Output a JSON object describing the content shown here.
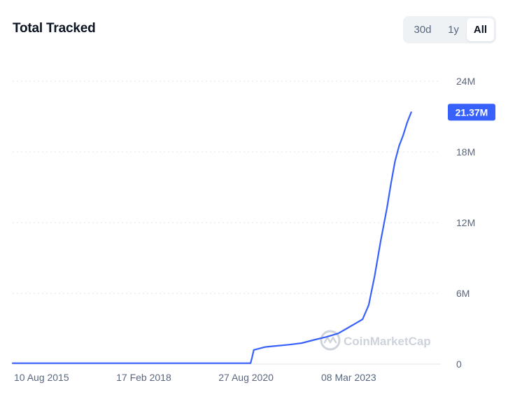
{
  "header": {
    "title": "Total Tracked"
  },
  "range_tabs": [
    {
      "label": "30d",
      "active": false
    },
    {
      "label": "1y",
      "active": false
    },
    {
      "label": "All",
      "active": true
    }
  ],
  "watermark": "CoinMarketCap",
  "colors": {
    "line": "#3861fb",
    "badge": "#3861fb",
    "grid": "#e3e6ea",
    "axis_text": "#58667e"
  },
  "chart_data": {
    "type": "line",
    "title": "Total Tracked",
    "xlabel": "",
    "ylabel": "",
    "ylim": [
      0,
      24000000
    ],
    "x_tick_labels": [
      "10 Aug 2015",
      "17 Feb 2018",
      "27 Aug 2020",
      "08 Mar 2023"
    ],
    "x_ticks": [
      2015.61,
      2018.13,
      2020.65,
      2023.18
    ],
    "y_tick_labels": [
      "0",
      "6M",
      "12M",
      "18M",
      "24M"
    ],
    "y_ticks": [
      0,
      6000000,
      12000000,
      18000000,
      24000000
    ],
    "grid": true,
    "last_value_label": "21.37M",
    "series": [
      {
        "name": "Total Tracked",
        "x": [
          2015.61,
          2018.0,
          2020.0,
          2021.44,
          2021.48,
          2021.52,
          2021.8,
          2022.1,
          2022.4,
          2022.7,
          2023.0,
          2023.3,
          2023.6,
          2023.8,
          2024.0,
          2024.2,
          2024.35,
          2024.5,
          2024.65,
          2024.8,
          2024.9,
          2025.0,
          2025.1,
          2025.2,
          2025.3,
          2025.4
        ],
        "y": [
          80000,
          80000,
          80000,
          80000,
          600000,
          1200000,
          1450000,
          1550000,
          1650000,
          1780000,
          2050000,
          2300000,
          2600000,
          3000000,
          3400000,
          3800000,
          5000000,
          7500000,
          10500000,
          13200000,
          15300000,
          17200000,
          18500000,
          19400000,
          20500000,
          21370000
        ]
      }
    ]
  }
}
